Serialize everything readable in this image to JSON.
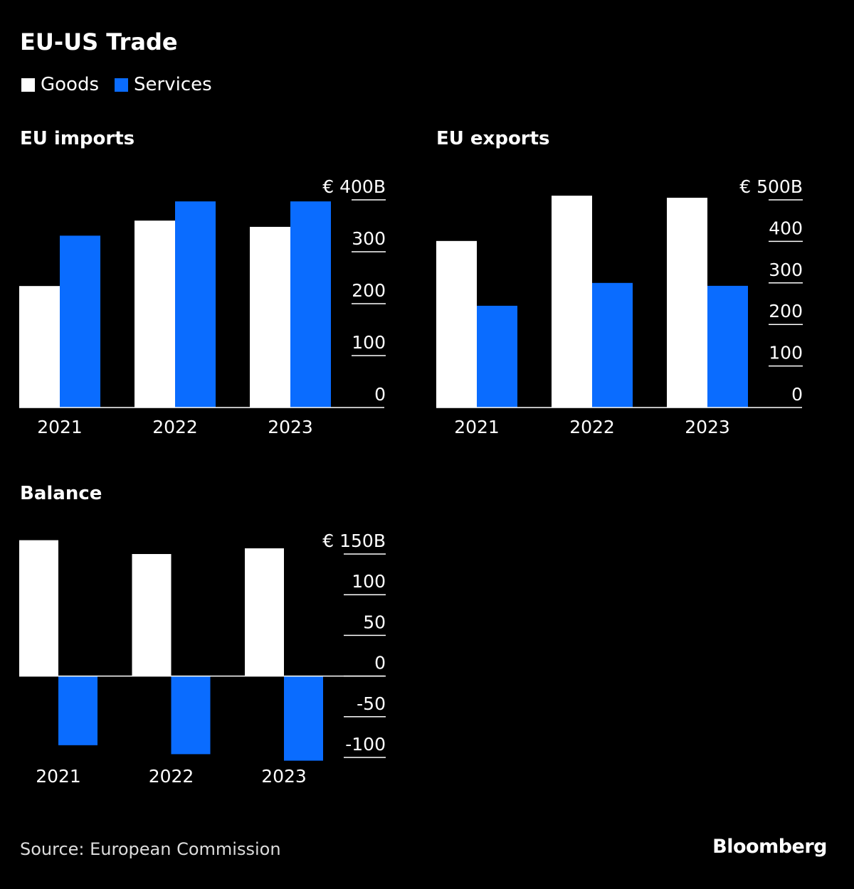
{
  "title": "EU-US Trade",
  "legend": [
    {
      "label": "Goods",
      "color": "#ffffff"
    },
    {
      "label": "Services",
      "color": "#0a6cff"
    }
  ],
  "source": "Source: European Commission",
  "logo": "Bloomberg",
  "chart_data": [
    {
      "type": "bar",
      "title": "EU imports",
      "categories": [
        "2021",
        "2022",
        "2023"
      ],
      "series": [
        {
          "name": "Goods",
          "values": [
            234,
            360,
            348
          ]
        },
        {
          "name": "Services",
          "values": [
            331,
            397,
            397
          ]
        }
      ],
      "ylim": [
        0,
        400
      ],
      "yticks": [
        0,
        100,
        200,
        300,
        400
      ],
      "ytick_labels": [
        "0",
        "100",
        "200",
        "300",
        "€ 400B"
      ],
      "axis_side": "right"
    },
    {
      "type": "bar",
      "title": "EU exports",
      "categories": [
        "2021",
        "2022",
        "2023"
      ],
      "series": [
        {
          "name": "Goods",
          "values": [
            401,
            510,
            505
          ]
        },
        {
          "name": "Services",
          "values": [
            245,
            300,
            293
          ]
        }
      ],
      "ylim": [
        0,
        500
      ],
      "yticks": [
        0,
        100,
        200,
        300,
        400,
        500
      ],
      "ytick_labels": [
        "0",
        "100",
        "200",
        "300",
        "400",
        "€ 500B"
      ],
      "axis_side": "right"
    },
    {
      "type": "bar",
      "title": "Balance",
      "categories": [
        "2021",
        "2022",
        "2023"
      ],
      "series": [
        {
          "name": "Goods",
          "values": [
            167,
            150,
            157
          ]
        },
        {
          "name": "Services",
          "values": [
            -85,
            -96,
            -104
          ]
        }
      ],
      "ylim": [
        -100,
        150
      ],
      "yticks": [
        -100,
        -50,
        0,
        50,
        100,
        150
      ],
      "ytick_labels": [
        "-100",
        "-50",
        "0",
        "50",
        "100",
        "€ 150B"
      ],
      "axis_side": "right"
    }
  ]
}
